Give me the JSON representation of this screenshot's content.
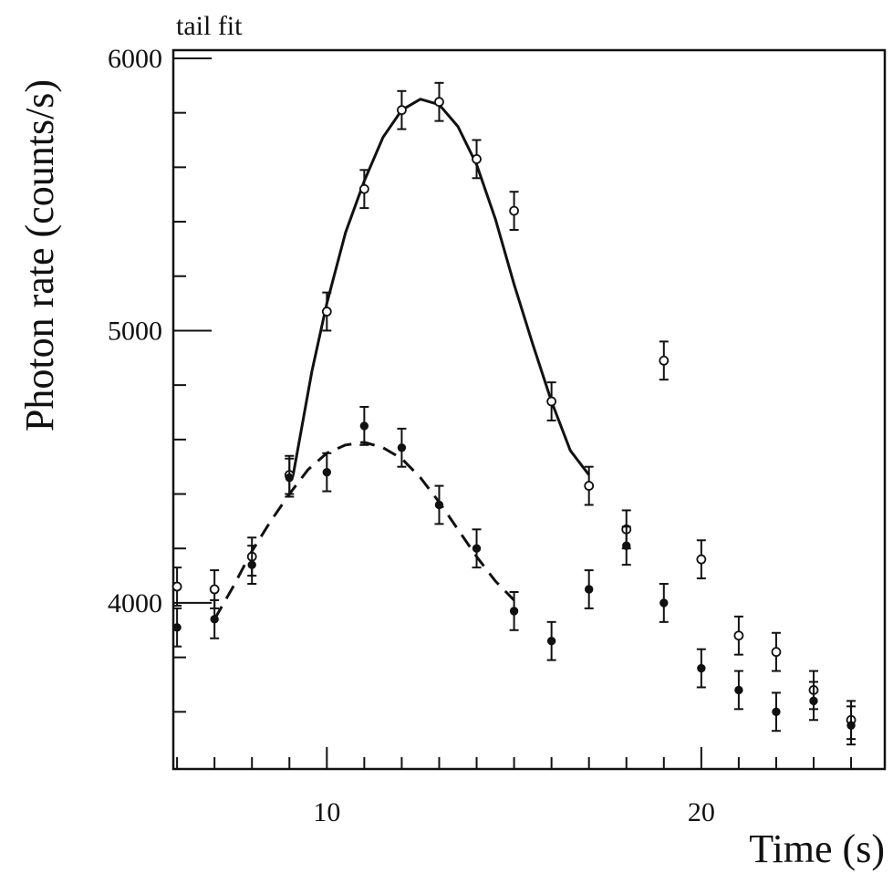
{
  "chart_data": {
    "type": "scatter",
    "title": "tail fit",
    "xlabel": "Time (s)",
    "ylabel": "Photon rate (counts/s)",
    "xlim": [
      5.9,
      24.9
    ],
    "ylim": [
      3390,
      6030
    ],
    "x_ticks_major": [
      10,
      20
    ],
    "x_ticks_minor": [
      6,
      7,
      8,
      9,
      11,
      12,
      13,
      14,
      15,
      16,
      17,
      18,
      19,
      21,
      22,
      23,
      24
    ],
    "y_ticks_major": [
      4000,
      5000,
      6000
    ],
    "y_ticks_minor": [
      3600,
      3800,
      4200,
      4400,
      4600,
      4800,
      5200,
      5400,
      5600,
      5800
    ],
    "x_tick_labels": [
      "10",
      "20"
    ],
    "y_tick_labels": [
      "4000",
      "5000",
      "6000"
    ],
    "grid": false,
    "legend": "none",
    "series": [
      {
        "marker": "open-circle",
        "error_bar": 70,
        "x": [
          6,
          7,
          8,
          9,
          10,
          11,
          12,
          13,
          14,
          15,
          16,
          17,
          18,
          19,
          20,
          21,
          22,
          23,
          24
        ],
        "y": [
          4060,
          4050,
          4170,
          4470,
          5070,
          5520,
          5810,
          5840,
          5630,
          5440,
          4740,
          4430,
          4270,
          4890,
          4160,
          3880,
          3820,
          3680,
          3570
        ]
      },
      {
        "marker": "filled-circle",
        "error_bar": 70,
        "x": [
          6,
          7,
          8,
          9,
          10,
          11,
          12,
          13,
          14,
          15,
          16,
          17,
          18,
          19,
          20,
          21,
          22,
          23,
          24
        ],
        "y": [
          3910,
          3940,
          4140,
          4460,
          4480,
          4650,
          4570,
          4360,
          4200,
          3970,
          3860,
          4050,
          4210,
          4000,
          3760,
          3680,
          3600,
          3640,
          3550
        ]
      },
      {
        "line_style": "solid",
        "type": "line",
        "x": [
          9.1,
          9.6,
          10.0,
          10.5,
          11.0,
          11.5,
          12.0,
          12.5,
          13.0,
          13.5,
          14.0,
          14.5,
          15.0,
          15.5,
          16.0,
          16.5,
          17.0
        ],
        "y": [
          4470,
          4850,
          5100,
          5360,
          5550,
          5710,
          5810,
          5850,
          5830,
          5750,
          5610,
          5410,
          5170,
          4950,
          4740,
          4560,
          4470
        ]
      },
      {
        "line_style": "dashed",
        "type": "line",
        "x": [
          7.0,
          7.5,
          8.0,
          8.5,
          9.0,
          9.5,
          10.0,
          10.5,
          11.0,
          11.5,
          12.0,
          12.5,
          13.0,
          13.5,
          14.0,
          14.5,
          15.0
        ],
        "y": [
          3940,
          4060,
          4190,
          4300,
          4400,
          4490,
          4550,
          4580,
          4590,
          4570,
          4530,
          4460,
          4370,
          4270,
          4170,
          4080,
          4010
        ]
      }
    ]
  }
}
